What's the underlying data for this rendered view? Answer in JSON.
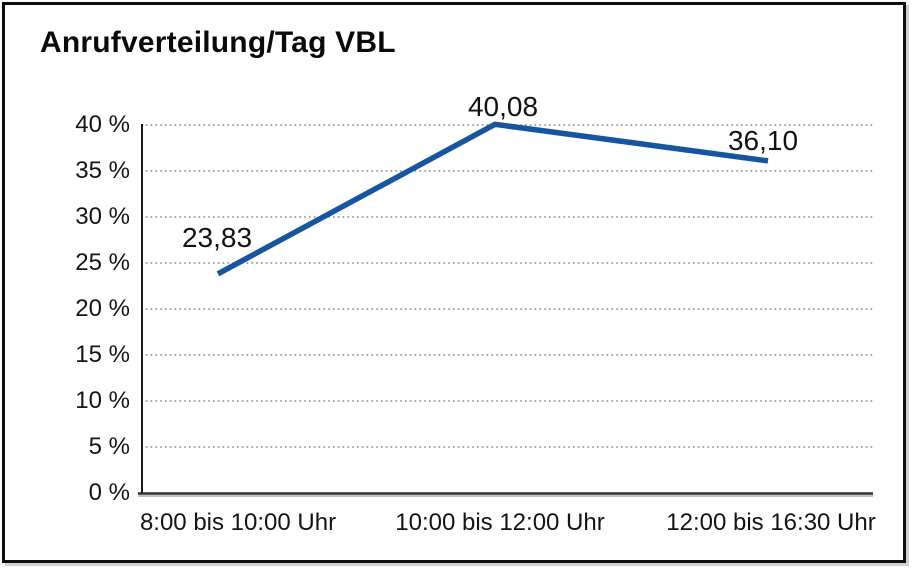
{
  "page": {
    "background": "#ffffff",
    "frame_border_color": "#0e0e0e",
    "text_color": "#141414"
  },
  "chart_data": {
    "type": "line",
    "title": "Anrufverteilung/Tag VBL",
    "categories": [
      "8:00 bis 10:00 Uhr",
      "10:00 bis 12:00 Uhr",
      "12:00 bis 16:30 Uhr"
    ],
    "values": [
      23.83,
      40.08,
      36.1
    ],
    "point_labels": [
      "23,83",
      "40,08",
      "36,10"
    ],
    "xlabel": "",
    "ylabel": "",
    "ylim": [
      0,
      40
    ],
    "y_tick_step": 5,
    "y_tick_labels": [
      "0 %",
      "5 %",
      "10 %",
      "15 %",
      "20 %",
      "25 %",
      "30 %",
      "35 %",
      "40 %"
    ],
    "y_unit": "%",
    "grid": "horizontal-dotted",
    "legend": "none",
    "line_color": "#1655A0",
    "gridline_color": "#6f6f6f",
    "axis_color": "#1a1a1a"
  }
}
